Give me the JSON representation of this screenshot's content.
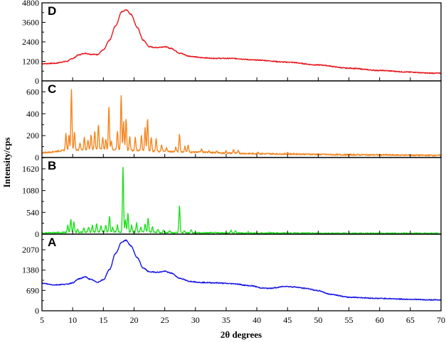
{
  "chart_data": {
    "type": "line",
    "xlabel": "2θ degrees",
    "ylabel": "Intensity/cps",
    "xlim": [
      5,
      70
    ],
    "x_ticks": [
      5,
      10,
      15,
      20,
      25,
      30,
      35,
      40,
      45,
      50,
      55,
      60,
      65,
      70
    ],
    "grid": false,
    "panels": [
      {
        "letter": "D",
        "color": "#e8141b",
        "ylim": [
          0,
          4800
        ],
        "y_ticks": [
          0,
          1200,
          2400,
          3600,
          4800
        ],
        "kind": "amorphous",
        "points": [
          [
            5,
            1060
          ],
          [
            7,
            1080
          ],
          [
            9,
            1200
          ],
          [
            10,
            1380
          ],
          [
            11,
            1600
          ],
          [
            12,
            1700
          ],
          [
            13,
            1640
          ],
          [
            14,
            1620
          ],
          [
            15,
            1900
          ],
          [
            16,
            2500
          ],
          [
            17,
            3400
          ],
          [
            18,
            4250
          ],
          [
            18.7,
            4380
          ],
          [
            19.5,
            4100
          ],
          [
            20.5,
            3300
          ],
          [
            21.5,
            2500
          ],
          [
            22.5,
            2100
          ],
          [
            23.5,
            2050
          ],
          [
            25,
            2100
          ],
          [
            26,
            2000
          ],
          [
            27.5,
            1700
          ],
          [
            29,
            1520
          ],
          [
            31,
            1430
          ],
          [
            33,
            1390
          ],
          [
            36,
            1380
          ],
          [
            40,
            1280
          ],
          [
            45,
            1150
          ],
          [
            50,
            980
          ],
          [
            55,
            780
          ],
          [
            60,
            640
          ],
          [
            65,
            540
          ],
          [
            68,
            480
          ],
          [
            70,
            470
          ]
        ]
      },
      {
        "letter": "C",
        "color": "#f5861f",
        "ylim": [
          0,
          700
        ],
        "y_ticks": [
          0,
          200,
          400,
          600
        ],
        "kind": "crystalline",
        "baseline": [
          [
            5,
            45
          ],
          [
            10,
            70
          ],
          [
            15,
            75
          ],
          [
            20,
            65
          ],
          [
            25,
            55
          ],
          [
            30,
            50
          ],
          [
            35,
            40
          ],
          [
            40,
            35
          ],
          [
            45,
            32
          ],
          [
            55,
            25
          ],
          [
            70,
            20
          ]
        ],
        "peaks": [
          [
            8.9,
            150
          ],
          [
            9.4,
            140
          ],
          [
            9.8,
            550
          ],
          [
            10.3,
            160
          ],
          [
            11.2,
            60
          ],
          [
            11.9,
            110
          ],
          [
            12.5,
            90
          ],
          [
            13.0,
            140
          ],
          [
            13.6,
            170
          ],
          [
            14.2,
            230
          ],
          [
            14.9,
            110
          ],
          [
            15.4,
            90
          ],
          [
            15.9,
            390
          ],
          [
            16.3,
            80
          ],
          [
            17.3,
            170
          ],
          [
            17.9,
            500
          ],
          [
            18.3,
            260
          ],
          [
            18.7,
            290
          ],
          [
            19.3,
            130
          ],
          [
            20.2,
            120
          ],
          [
            21.2,
            140
          ],
          [
            21.8,
            210
          ],
          [
            22.2,
            300
          ],
          [
            22.8,
            130
          ],
          [
            23.6,
            110
          ],
          [
            24.5,
            60
          ],
          [
            25.3,
            40
          ],
          [
            26.8,
            40
          ],
          [
            27.4,
            160
          ],
          [
            28.3,
            50
          ],
          [
            28.8,
            60
          ],
          [
            31,
            25
          ],
          [
            32.2,
            20
          ],
          [
            33.5,
            20
          ],
          [
            35,
            20
          ],
          [
            36.2,
            35
          ],
          [
            37,
            25
          ],
          [
            40.2,
            15
          ],
          [
            45,
            15
          ]
        ]
      },
      {
        "letter": "B",
        "color": "#22e022",
        "ylim": [
          0,
          1900
        ],
        "y_ticks": [
          0,
          540,
          1080,
          1620
        ],
        "kind": "crystalline",
        "baseline": [
          [
            5,
            25
          ],
          [
            10,
            45
          ],
          [
            15,
            60
          ],
          [
            20,
            50
          ],
          [
            25,
            40
          ],
          [
            30,
            30
          ],
          [
            40,
            25
          ],
          [
            55,
            18
          ],
          [
            70,
            15
          ]
        ],
        "peaks": [
          [
            9.2,
            170
          ],
          [
            9.7,
            330
          ],
          [
            10.2,
            260
          ],
          [
            10.8,
            80
          ],
          [
            11.8,
            100
          ],
          [
            12.6,
            120
          ],
          [
            13.2,
            160
          ],
          [
            13.9,
            200
          ],
          [
            14.6,
            150
          ],
          [
            15.4,
            170
          ],
          [
            16.0,
            400
          ],
          [
            16.5,
            120
          ],
          [
            17.3,
            160
          ],
          [
            18.2,
            1620
          ],
          [
            18.6,
            320
          ],
          [
            19.0,
            470
          ],
          [
            19.6,
            180
          ],
          [
            20.4,
            230
          ],
          [
            21.1,
            140
          ],
          [
            21.8,
            220
          ],
          [
            22.3,
            360
          ],
          [
            23.0,
            160
          ],
          [
            23.9,
            90
          ],
          [
            24.8,
            60
          ],
          [
            25.8,
            50
          ],
          [
            27.4,
            680
          ],
          [
            28.2,
            60
          ],
          [
            29.3,
            80
          ],
          [
            35.8,
            70
          ],
          [
            36.5,
            50
          ],
          [
            38.6,
            30
          ],
          [
            42,
            20
          ],
          [
            46.5,
            15
          ]
        ]
      },
      {
        "letter": "A",
        "color": "#1414e6",
        "ylim": [
          0,
          2600
        ],
        "y_ticks": [
          0,
          690,
          1380,
          2070
        ],
        "kind": "amorphous",
        "points": [
          [
            5,
            930
          ],
          [
            7,
            880
          ],
          [
            9,
            900
          ],
          [
            10,
            950
          ],
          [
            11,
            1080
          ],
          [
            12,
            1150
          ],
          [
            13,
            1060
          ],
          [
            14,
            970
          ],
          [
            15,
            1050
          ],
          [
            16,
            1400
          ],
          [
            17,
            1950
          ],
          [
            18,
            2330
          ],
          [
            18.7,
            2390
          ],
          [
            19.5,
            2200
          ],
          [
            20.5,
            1800
          ],
          [
            21.5,
            1450
          ],
          [
            22.5,
            1320
          ],
          [
            24,
            1310
          ],
          [
            25,
            1340
          ],
          [
            26,
            1280
          ],
          [
            27.5,
            1100
          ],
          [
            29,
            1000
          ],
          [
            31,
            960
          ],
          [
            33,
            950
          ],
          [
            36,
            920
          ],
          [
            39,
            850
          ],
          [
            41,
            770
          ],
          [
            42,
            760
          ],
          [
            43,
            780
          ],
          [
            44.5,
            830
          ],
          [
            46,
            810
          ],
          [
            48,
            760
          ],
          [
            50,
            680
          ],
          [
            52,
            560
          ],
          [
            55,
            460
          ],
          [
            60,
            420
          ],
          [
            65,
            390
          ],
          [
            68,
            370
          ],
          [
            70,
            370
          ]
        ]
      }
    ]
  }
}
